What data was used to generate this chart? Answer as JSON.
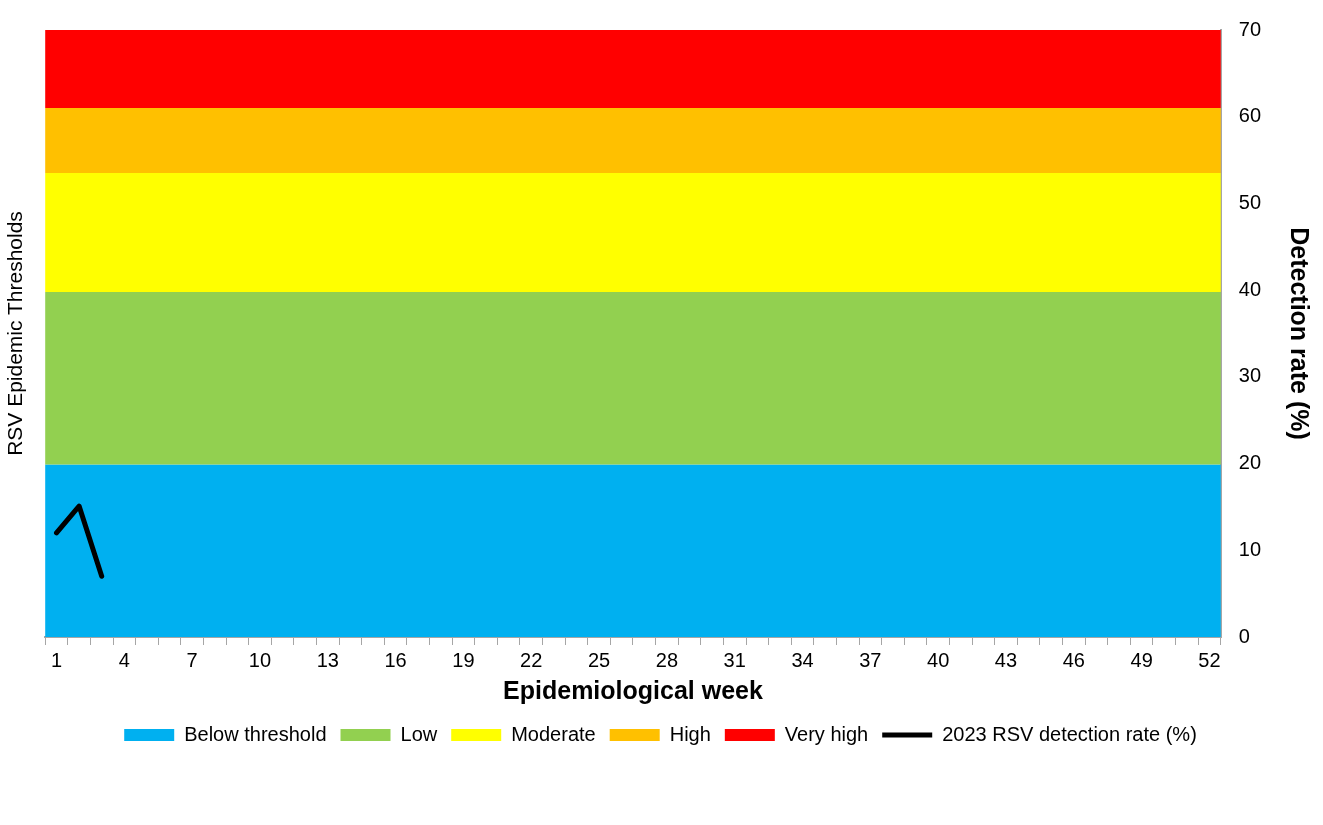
{
  "chart_data": {
    "type": "line",
    "categories": [
      "1",
      null,
      null,
      "4",
      null,
      null,
      "7",
      null,
      null,
      "10",
      null,
      null,
      "13",
      null,
      null,
      "16",
      null,
      null,
      "19",
      null,
      null,
      "22",
      null,
      null,
      "25",
      null,
      null,
      "28",
      null,
      null,
      "31",
      null,
      null,
      "34",
      null,
      null,
      "37",
      null,
      null,
      "40",
      null,
      null,
      "43",
      null,
      null,
      "46",
      null,
      null,
      "49",
      null,
      null,
      "52"
    ],
    "xlabel": "Epidemiological week",
    "ylabel": "RSV Epidemic Thresholds",
    "y2label": "Detection rate (%)",
    "y2lim": [
      0,
      70
    ],
    "y2ticks": [
      0,
      10,
      20,
      30,
      40,
      50,
      60,
      70
    ],
    "grid": false,
    "legend": "bottom",
    "bands": [
      {
        "axis": "y2",
        "from": 0,
        "to": 19.9,
        "label": "Below threshold",
        "color": "#00b0f0"
      },
      {
        "axis": "y2",
        "from": 19.9,
        "to": 39.8,
        "label": "Low",
        "color": "#92d050"
      },
      {
        "axis": "y2",
        "from": 39.8,
        "to": 53.5,
        "label": "Moderate",
        "color": "#ffff00"
      },
      {
        "axis": "y2",
        "from": 53.5,
        "to": 61.0,
        "label": "High",
        "color": "#ffc000"
      },
      {
        "axis": "y2",
        "from": 61.0,
        "to": 70,
        "label": "Very high",
        "color": "#ff0000"
      }
    ],
    "series": [
      {
        "name": "2023 RSV detection rate (%)",
        "color": "#000000",
        "axis": "y2",
        "values": [
          12.0,
          15.1,
          7.0,
          null,
          null,
          null,
          null,
          null,
          null,
          null,
          null,
          null,
          null,
          null,
          null,
          null,
          null,
          null,
          null,
          null,
          null,
          null,
          null,
          null,
          null,
          null,
          null,
          null,
          null,
          null,
          null,
          null,
          null,
          null,
          null,
          null,
          null,
          null,
          null,
          null,
          null,
          null,
          null,
          null,
          null,
          null,
          null,
          null,
          null,
          null,
          null,
          null
        ]
      }
    ]
  }
}
